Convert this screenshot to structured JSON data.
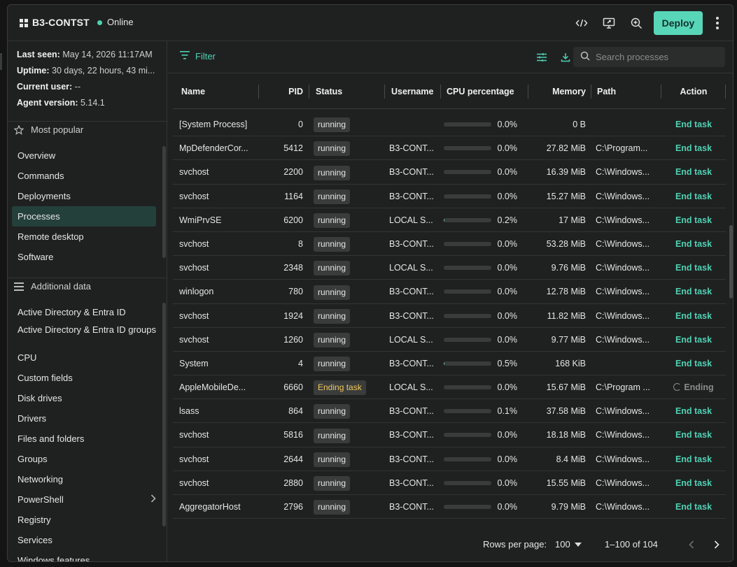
{
  "header": {
    "title": "B3-CONTST",
    "status": "Online",
    "deploy_label": "Deploy",
    "icons": [
      "code-icon",
      "remote-screen-icon",
      "search-zoom-icon",
      "more-vert-icon"
    ]
  },
  "sidebar": {
    "info": [
      {
        "key": "Last seen:",
        "value": "May 14, 2026 11:17AM"
      },
      {
        "key": "Uptime:",
        "value": "30 days, 22 hours, 43 mi..."
      },
      {
        "key": "Current user:",
        "value": "--"
      },
      {
        "key": "Agent version:",
        "value": "5.14.1"
      }
    ],
    "popular_title": "Most popular",
    "popular_items": [
      "Overview",
      "Commands",
      "Deployments",
      "Processes",
      "Remote desktop",
      "Software"
    ],
    "active_item": "Processes",
    "additional_title": "Additional data",
    "additional_items": [
      "Active Directory & Entra ID",
      "Active Directory & Entra ID groups",
      "CPU",
      "Custom fields",
      "Disk drives",
      "Drivers",
      "Files and folders",
      "Groups",
      "Networking",
      "PowerShell",
      "Registry",
      "Services",
      "Windows features"
    ]
  },
  "toolbar": {
    "filter_label": "Filter",
    "search_placeholder": "Search processes"
  },
  "table": {
    "columns": [
      "Name",
      "PID",
      "Status",
      "Username",
      "CPU percentage",
      "Memory",
      "Path",
      "Action"
    ],
    "rows": [
      {
        "name": "[System Process]",
        "pid": "0",
        "status": "running",
        "user": "",
        "cpu": "0.0%",
        "cpu_value": 0.0,
        "mem": "0 B",
        "path": "",
        "action": "End task"
      },
      {
        "name": "MpDefenderCor...",
        "pid": "5412",
        "status": "running",
        "user": "B3-CONT...",
        "cpu": "0.0%",
        "cpu_value": 0.0,
        "mem": "27.82 MiB",
        "path": "C:\\Program...",
        "action": "End task"
      },
      {
        "name": "svchost",
        "pid": "2200",
        "status": "running",
        "user": "B3-CONT...",
        "cpu": "0.0%",
        "cpu_value": 0.0,
        "mem": "16.39 MiB",
        "path": "C:\\Windows...",
        "action": "End task"
      },
      {
        "name": "svchost",
        "pid": "1164",
        "status": "running",
        "user": "B3-CONT...",
        "cpu": "0.0%",
        "cpu_value": 0.0,
        "mem": "15.27 MiB",
        "path": "C:\\Windows...",
        "action": "End task"
      },
      {
        "name": "WmiPrvSE",
        "pid": "6200",
        "status": "running",
        "user": "LOCAL S...",
        "cpu": "0.2%",
        "cpu_value": 0.2,
        "mem": "17 MiB",
        "path": "C:\\Windows...",
        "action": "End task"
      },
      {
        "name": "svchost",
        "pid": "8",
        "status": "running",
        "user": "B3-CONT...",
        "cpu": "0.0%",
        "cpu_value": 0.0,
        "mem": "53.28 MiB",
        "path": "C:\\Windows...",
        "action": "End task"
      },
      {
        "name": "svchost",
        "pid": "2348",
        "status": "running",
        "user": "LOCAL S...",
        "cpu": "0.0%",
        "cpu_value": 0.0,
        "mem": "9.76 MiB",
        "path": "C:\\Windows...",
        "action": "End task"
      },
      {
        "name": "winlogon",
        "pid": "780",
        "status": "running",
        "user": "B3-CONT...",
        "cpu": "0.0%",
        "cpu_value": 0.0,
        "mem": "12.78 MiB",
        "path": "C:\\Windows...",
        "action": "End task"
      },
      {
        "name": "svchost",
        "pid": "1924",
        "status": "running",
        "user": "B3-CONT...",
        "cpu": "0.0%",
        "cpu_value": 0.0,
        "mem": "11.82 MiB",
        "path": "C:\\Windows...",
        "action": "End task"
      },
      {
        "name": "svchost",
        "pid": "1260",
        "status": "running",
        "user": "LOCAL S...",
        "cpu": "0.0%",
        "cpu_value": 0.0,
        "mem": "9.77 MiB",
        "path": "C:\\Windows...",
        "action": "End task"
      },
      {
        "name": "System",
        "pid": "4",
        "status": "running",
        "user": "B3-CONT...",
        "cpu": "0.5%",
        "cpu_value": 0.5,
        "mem": "168 KiB",
        "path": "",
        "action": "End task"
      },
      {
        "name": "AppleMobileDe...",
        "pid": "6660",
        "status": "Ending task",
        "user": "LOCAL S...",
        "cpu": "0.0%",
        "cpu_value": 0.0,
        "mem": "15.67 MiB",
        "path": "C:\\Program ...",
        "action": "Ending"
      },
      {
        "name": "lsass",
        "pid": "864",
        "status": "running",
        "user": "B3-CONT...",
        "cpu": "0.1%",
        "cpu_value": 0.1,
        "mem": "37.58 MiB",
        "path": "C:\\Windows...",
        "action": "End task"
      },
      {
        "name": "svchost",
        "pid": "5816",
        "status": "running",
        "user": "B3-CONT...",
        "cpu": "0.0%",
        "cpu_value": 0.0,
        "mem": "18.18 MiB",
        "path": "C:\\Windows...",
        "action": "End task"
      },
      {
        "name": "svchost",
        "pid": "2644",
        "status": "running",
        "user": "B3-CONT...",
        "cpu": "0.0%",
        "cpu_value": 0.0,
        "mem": "8.4 MiB",
        "path": "C:\\Windows...",
        "action": "End task"
      },
      {
        "name": "svchost",
        "pid": "2880",
        "status": "running",
        "user": "B3-CONT...",
        "cpu": "0.0%",
        "cpu_value": 0.0,
        "mem": "15.55 MiB",
        "path": "C:\\Windows...",
        "action": "End task"
      },
      {
        "name": "AggregatorHost",
        "pid": "2796",
        "status": "running",
        "user": "B3-CONT...",
        "cpu": "0.0%",
        "cpu_value": 0.0,
        "mem": "9.79 MiB",
        "path": "C:\\Windows...",
        "action": "End task"
      }
    ]
  },
  "footer": {
    "rows_per_page_label": "Rows per page:",
    "rows_per_page": "100",
    "range": "1–100 of 104"
  },
  "colors": {
    "accent": "#58d6b8",
    "background": "#1f2121",
    "pill": "#3a3c3c",
    "ending": "#f0c75a"
  }
}
